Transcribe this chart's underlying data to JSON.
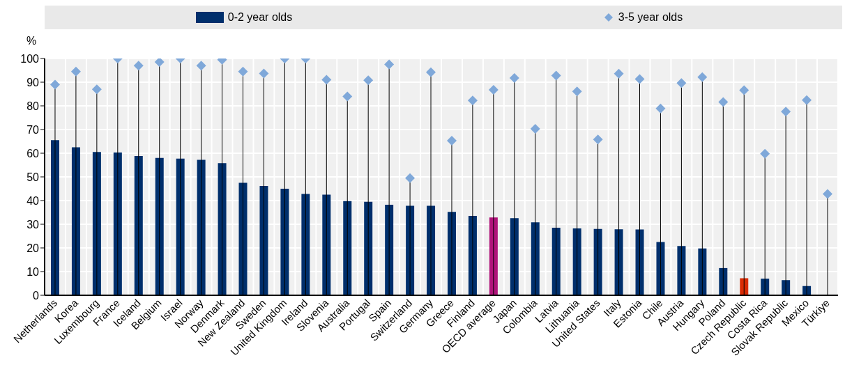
{
  "chart_data": {
    "type": "bar",
    "ylabel": "%",
    "categories": [
      "Netherlands",
      "Korea",
      "Luxembourg",
      "France",
      "Iceland",
      "Belgium",
      "Israel",
      "Norway",
      "Denmark",
      "New Zealand",
      "Sweden",
      "United Kingdom",
      "Ireland",
      "Slovenia",
      "Australia",
      "Portugal",
      "Spain",
      "Switzerland",
      "Germany",
      "Greece",
      "Finland",
      "OECD average",
      "Japan",
      "Colombia",
      "Latvia",
      "Lithuania",
      "United States",
      "Italy",
      "Estonia",
      "Chile",
      "Austria",
      "Hungary",
      "Poland",
      "Czech Republic",
      "Costa Rica",
      "Slovak Republic",
      "Mexico",
      "Türkiye"
    ],
    "series": [
      {
        "name": "0-2 year olds",
        "color": "#002f6c",
        "values": [
          65.5,
          62.5,
          60.5,
          60.3,
          58.8,
          58,
          57.7,
          57.2,
          55.8,
          47.5,
          46.2,
          45,
          42.8,
          42.5,
          39.8,
          39.5,
          38.2,
          37.8,
          37.8,
          35.2,
          33.5,
          32.9,
          32.6,
          30.8,
          28.5,
          28.2,
          28,
          27.9,
          27.8,
          22.5,
          20.8,
          19.8,
          11.5,
          7.2,
          7,
          6.4,
          3.9,
          null
        ],
        "colors": [
          "#002f6c",
          "#002f6c",
          "#002f6c",
          "#002f6c",
          "#002f6c",
          "#002f6c",
          "#002f6c",
          "#002f6c",
          "#002f6c",
          "#002f6c",
          "#002f6c",
          "#002f6c",
          "#002f6c",
          "#002f6c",
          "#002f6c",
          "#002f6c",
          "#002f6c",
          "#002f6c",
          "#002f6c",
          "#002f6c",
          "#002f6c",
          "#b0147a",
          "#002f6c",
          "#002f6c",
          "#002f6c",
          "#002f6c",
          "#002f6c",
          "#002f6c",
          "#002f6c",
          "#002f6c",
          "#002f6c",
          "#002f6c",
          "#002f6c",
          "#d92b04",
          "#002f6c",
          "#002f6c",
          "#002f6c",
          "#002f6c"
        ]
      },
      {
        "name": "3-5 year olds",
        "type": "lollipop",
        "color": "#7fa8d9",
        "values": [
          89,
          94.5,
          87,
          100,
          97,
          98.5,
          100,
          97,
          99.5,
          94.5,
          93.7,
          100,
          100,
          91,
          84,
          90.8,
          97.5,
          49.5,
          94.2,
          65.3,
          82.3,
          86.8,
          91.8,
          70.3,
          92.8,
          86.1,
          65.8,
          93.6,
          91.3,
          78.9,
          89.6,
          92.1,
          81.6,
          86.6,
          59.8,
          77.6,
          82.4,
          42.8
        ]
      }
    ],
    "ylim": [
      0,
      100
    ],
    "yticks": [
      0,
      10,
      20,
      30,
      40,
      50,
      60,
      70,
      80,
      90,
      100
    ],
    "grid": true,
    "legend": "top",
    "marker": "diamond"
  }
}
